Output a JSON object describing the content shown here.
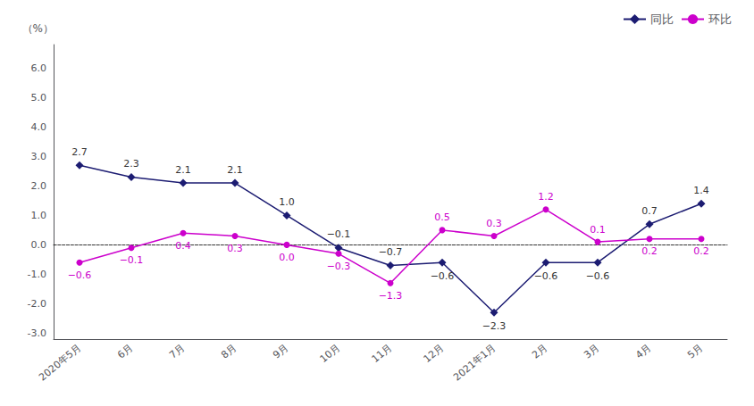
{
  "chart_data": {
    "type": "line",
    "categories": [
      "2020年5月",
      "6月",
      "7月",
      "8月",
      "9月",
      "10月",
      "11月",
      "12月",
      "2021年1月",
      "2月",
      "3月",
      "4月",
      "5月"
    ],
    "series": [
      {
        "name": "同比",
        "color": "#1c1c72",
        "marker": "diamond",
        "values": [
          2.7,
          2.3,
          2.1,
          2.1,
          1.0,
          -0.1,
          -0.7,
          -0.6,
          -2.3,
          -0.6,
          -0.6,
          0.7,
          1.4
        ],
        "value_labels": [
          "2.7",
          "2.3",
          "2.1",
          "2.1",
          "1.0",
          "−0.1",
          "−0.7",
          "−0.6",
          "−2.3",
          "−0.6",
          "−0.6",
          "0.7",
          "1.4"
        ]
      },
      {
        "name": "环比",
        "color": "#cc00cc",
        "marker": "circle",
        "values": [
          -0.6,
          -0.1,
          0.4,
          0.3,
          0.0,
          -0.3,
          -1.3,
          0.5,
          0.3,
          1.2,
          0.1,
          0.2,
          0.2
        ],
        "value_labels": [
          "−0.6",
          "−0.1",
          "0.4",
          "0.3",
          "0.0",
          "−0.3",
          "−1.3",
          "0.5",
          "0.3",
          "1.2",
          "0.1",
          "0.2",
          "0.2"
        ]
      }
    ],
    "ylabel": "（%）",
    "ylim": [
      -3.2,
      6.8
    ],
    "yticks": [
      {
        "value": -3.0,
        "label": "-3.0"
      },
      {
        "value": -2.0,
        "label": "-2.0"
      },
      {
        "value": -1.0,
        "label": "-1.0"
      },
      {
        "value": 0.0,
        "label": "0.0"
      },
      {
        "value": 1.0,
        "label": "1.0"
      },
      {
        "value": 2.0,
        "label": "2.0"
      },
      {
        "value": 3.0,
        "label": "3.0"
      },
      {
        "value": 4.0,
        "label": "4.0"
      },
      {
        "value": 5.0,
        "label": "5.0"
      },
      {
        "value": 6.0,
        "label": "6.0"
      }
    ],
    "grid": false,
    "legend": "upper right",
    "data_labels": true
  }
}
